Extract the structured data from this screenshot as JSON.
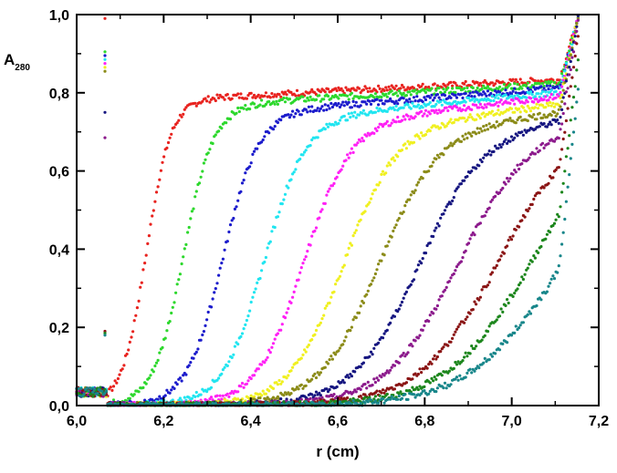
{
  "chart_data": {
    "type": "scatter",
    "title": "",
    "xlabel": "r (cm)",
    "ylabel": "A",
    "ylabel_sub": "280",
    "xlim": [
      6.0,
      7.2
    ],
    "ylim": [
      0.0,
      1.0
    ],
    "x_ticks": [
      "6,0",
      "6,2",
      "6,4",
      "6,6",
      "6,8",
      "7,0",
      "7,2"
    ],
    "y_ticks": [
      "0,0",
      "0,2",
      "0,4",
      "0,6",
      "0,8",
      "1,0"
    ],
    "grid": false,
    "legend": "none",
    "meniscus_r": 6.065,
    "cell_bottom_r": 7.14,
    "series": [
      {
        "color": "#e8231f",
        "boundary_midpoint": 6.16,
        "plateau": 0.78,
        "end": 0.835
      },
      {
        "color": "#2dd82d",
        "boundary_midpoint": 6.245,
        "plateau": 0.765,
        "end": 0.825
      },
      {
        "color": "#1c1ccc",
        "boundary_midpoint": 6.335,
        "plateau": 0.745,
        "end": 0.815
      },
      {
        "color": "#21e5f0",
        "boundary_midpoint": 6.43,
        "plateau": 0.73,
        "end": 0.805
      },
      {
        "color": "#ff21f5",
        "boundary_midpoint": 6.52,
        "plateau": 0.715,
        "end": 0.795
      },
      {
        "color": "#f0f020",
        "boundary_midpoint": 6.61,
        "plateau": 0.7,
        "end": 0.775
      },
      {
        "color": "#8b8b18",
        "boundary_midpoint": 6.69,
        "plateau": 0.69,
        "end": 0.755
      },
      {
        "color": "#161680",
        "boundary_midpoint": 6.78,
        "plateau": 0.68,
        "end": 0.74
      },
      {
        "color": "#8c1a8c",
        "boundary_midpoint": 6.865,
        "plateau": 0.665,
        "end": 0.725
      },
      {
        "color": "#8a1414",
        "boundary_midpoint": 6.95,
        "plateau": 0.65,
        "end": 0.705
      },
      {
        "color": "#1c861c",
        "boundary_midpoint": 7.02,
        "plateau": 0.63,
        "end": 0.675
      },
      {
        "color": "#18868a",
        "boundary_midpoint": 7.085,
        "plateau": 0.61,
        "end": 0.64
      }
    ]
  }
}
